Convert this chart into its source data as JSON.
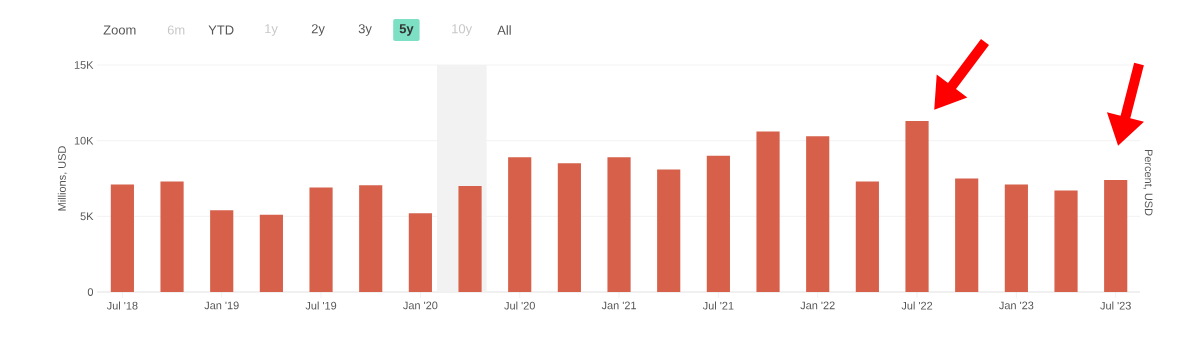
{
  "chart_data": {
    "type": "bar",
    "x": [
      "2018-07",
      "2018-10",
      "2019-01",
      "2019-04",
      "2019-07",
      "2019-10",
      "2020-01",
      "2020-04",
      "2020-07",
      "2020-10",
      "2021-01",
      "2021-04",
      "2021-07",
      "2021-10",
      "2022-01",
      "2022-04",
      "2022-07",
      "2022-10",
      "2023-01",
      "2023-04",
      "2023-07"
    ],
    "values": [
      7100,
      7300,
      5400,
      5100,
      6900,
      7050,
      5200,
      7000,
      8900,
      8500,
      8900,
      8100,
      9000,
      10600,
      10300,
      7300,
      11300,
      7500,
      7100,
      6700,
      7400
    ],
    "color": "#d6604a",
    "xlim": [
      "2018-05-15",
      "2023-08-15"
    ],
    "xticks": [
      {
        "value": "2018-07",
        "label": "Jul '18"
      },
      {
        "value": "2019-01",
        "label": "Jan '19"
      },
      {
        "value": "2019-07",
        "label": "Jul '19"
      },
      {
        "value": "2020-01",
        "label": "Jan '20"
      },
      {
        "value": "2020-07",
        "label": "Jul '20"
      },
      {
        "value": "2021-01",
        "label": "Jan '21"
      },
      {
        "value": "2021-07",
        "label": "Jul '21"
      },
      {
        "value": "2022-01",
        "label": "Jan '22"
      },
      {
        "value": "2022-07",
        "label": "Jul '22"
      },
      {
        "value": "2023-01",
        "label": "Jan '23"
      },
      {
        "value": "2023-07",
        "label": "Jul '23"
      }
    ],
    "ylim": [
      0,
      15000
    ],
    "yticks": [
      {
        "value": 0,
        "label": "0"
      },
      {
        "value": 5000,
        "label": "5K"
      },
      {
        "value": 10000,
        "label": "10K"
      },
      {
        "value": 15000,
        "label": "15K"
      }
    ],
    "ylabel": "Millions, USD",
    "y2label": "Percent, USD",
    "grid": "y",
    "bands": [
      {
        "axis": "x",
        "from": "2020-02",
        "to": "2020-05",
        "color": "#f2f2f2"
      }
    ],
    "annotations": [
      "Zoom",
      "6m",
      "YTD",
      "1y",
      "2y",
      "3y",
      "5y",
      "10y",
      "All"
    ]
  }
}
